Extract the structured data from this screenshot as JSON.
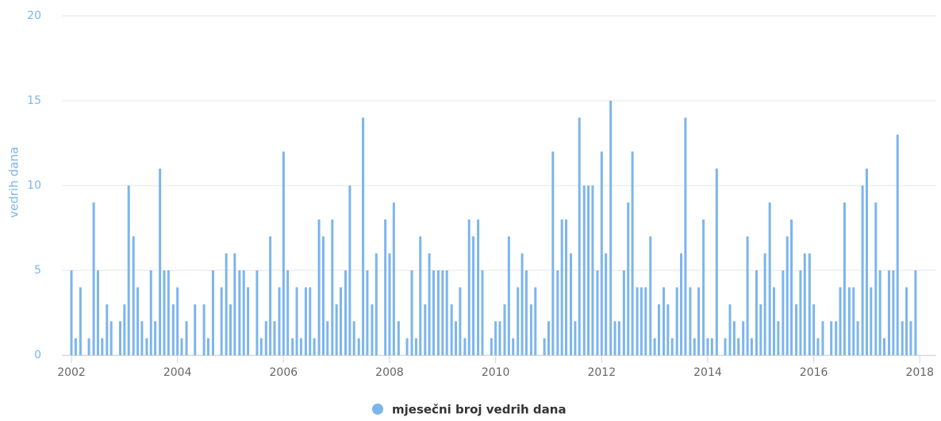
{
  "chart_data": {
    "type": "bar",
    "y_axis_label": "vedrih dana",
    "color": "#7cb5ec",
    "series": [
      {
        "name": "mjesečni broj vedrih dana",
        "color": "#7cb5ec",
        "x": [
          2002,
          2002.08,
          2002.17,
          2002.25,
          2002.33,
          2002.42,
          2002.5,
          2002.58,
          2002.67,
          2002.75,
          2002.83,
          2002.92,
          2003,
          2003.08,
          2003.17,
          2003.25,
          2003.33,
          2003.42,
          2003.5,
          2003.58,
          2003.67,
          2003.75,
          2003.83,
          2003.92,
          2004,
          2004.08,
          2004.17,
          2004.25,
          2004.33,
          2004.42,
          2004.5,
          2004.58,
          2004.67,
          2004.75,
          2004.83,
          2004.92,
          2005,
          2005.08,
          2005.17,
          2005.25,
          2005.33,
          2005.42,
          2005.5,
          2005.58,
          2005.67,
          2005.75,
          2005.83,
          2005.92,
          2006,
          2006.08,
          2006.17,
          2006.25,
          2006.33,
          2006.42,
          2006.5,
          2006.58,
          2006.67,
          2006.75,
          2006.83,
          2006.92,
          2007,
          2007.08,
          2007.17,
          2007.25,
          2007.33,
          2007.42,
          2007.5,
          2007.58,
          2007.67,
          2007.75,
          2007.83,
          2007.92,
          2008,
          2008.08,
          2008.17,
          2008.25,
          2008.33,
          2008.42,
          2008.5,
          2008.58,
          2008.67,
          2008.75,
          2008.83,
          2008.92,
          2009,
          2009.08,
          2009.17,
          2009.25,
          2009.33,
          2009.42,
          2009.5,
          2009.58,
          2009.67,
          2009.75,
          2009.83,
          2009.92,
          2010,
          2010.08,
          2010.17,
          2010.25,
          2010.33,
          2010.42,
          2010.5,
          2010.58,
          2010.67,
          2010.75,
          2010.83,
          2010.92,
          2011,
          2011.08,
          2011.17,
          2011.25,
          2011.33,
          2011.42,
          2011.5,
          2011.58,
          2011.67,
          2011.75,
          2011.83,
          2011.92,
          2012,
          2012.08,
          2012.17,
          2012.25,
          2012.33,
          2012.42,
          2012.5,
          2012.58,
          2012.67,
          2012.75,
          2012.83,
          2012.92,
          2013,
          2013.08,
          2013.17,
          2013.25,
          2013.33,
          2013.42,
          2013.5,
          2013.58,
          2013.67,
          2013.75,
          2013.83,
          2013.92,
          2014,
          2014.08,
          2014.17,
          2014.25,
          2014.33,
          2014.42,
          2014.5,
          2014.58,
          2014.67,
          2014.75,
          2014.83,
          2014.92,
          2015,
          2015.08,
          2015.17,
          2015.25,
          2015.33,
          2015.42,
          2015.5,
          2015.58,
          2015.67,
          2015.75,
          2015.83,
          2015.92,
          2016,
          2016.08,
          2016.17,
          2016.25,
          2016.33,
          2016.42,
          2016.5,
          2016.58,
          2016.67,
          2016.75,
          2016.83,
          2016.92,
          2017,
          2017.08,
          2017.17,
          2017.25,
          2017.33,
          2017.42,
          2017.5,
          2017.58,
          2017.67,
          2017.75,
          2017.83,
          2017.92
        ],
        "values": [
          5,
          1,
          4,
          0,
          1,
          9,
          5,
          1,
          3,
          2,
          0,
          2,
          3,
          10,
          7,
          4,
          2,
          1,
          5,
          2,
          11,
          5,
          5,
          3,
          4,
          1,
          2,
          0,
          3,
          0,
          3,
          1,
          5,
          0,
          4,
          6,
          3,
          6,
          5,
          5,
          4,
          0,
          5,
          1,
          2,
          7,
          2,
          4,
          12,
          5,
          1,
          4,
          1,
          4,
          4,
          1,
          8,
          7,
          2,
          8,
          3,
          4,
          5,
          10,
          2,
          1,
          14,
          5,
          3,
          6,
          0,
          8,
          6,
          9,
          2,
          0,
          1,
          5,
          1,
          7,
          3,
          6,
          5,
          5,
          5,
          5,
          3,
          2,
          4,
          1,
          8,
          7,
          8,
          5,
          0,
          1,
          2,
          2,
          3,
          7,
          1,
          4,
          6,
          5,
          3,
          4,
          0,
          1,
          2,
          12,
          5,
          8,
          8,
          6,
          2,
          14,
          10,
          10,
          10,
          5,
          12,
          6,
          15,
          2,
          2,
          5,
          9,
          12,
          4,
          4,
          4,
          7,
          1,
          3,
          4,
          3,
          1,
          4,
          6,
          14,
          4,
          1,
          4,
          8,
          1,
          1,
          11,
          0,
          1,
          3,
          2,
          1,
          2,
          7,
          1,
          5,
          3,
          6,
          9,
          4,
          2,
          5,
          7,
          8,
          3,
          5,
          6,
          6,
          3,
          1,
          2,
          0,
          2,
          2,
          4,
          9,
          4,
          4,
          2,
          10,
          11,
          4,
          9,
          5,
          1,
          5,
          5,
          13,
          2,
          4,
          2,
          5
        ]
      }
    ],
    "xlim": [
      2001.82,
      2018.31
    ],
    "xticks": [
      2002,
      2004,
      2006,
      2008,
      2010,
      2012,
      2014,
      2016,
      2018
    ],
    "ylim": [
      0,
      20
    ],
    "yticks": [
      0,
      5,
      10,
      15,
      20
    ],
    "grid": true
  }
}
